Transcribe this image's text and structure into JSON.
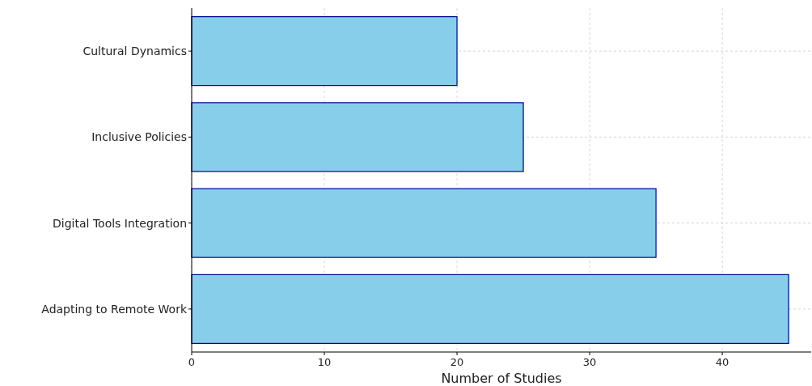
{
  "chart_data": {
    "type": "bar",
    "orientation": "horizontal",
    "xlabel": "Number of Studies",
    "categories": [
      "Cultural Dynamics",
      "Inclusive Policies",
      "Digital Tools Integration",
      "Adapting to Remote Work"
    ],
    "values": [
      20,
      25,
      35,
      45
    ],
    "color": "#87ceeb",
    "xlim": [
      0,
      46.7
    ],
    "xticks": [
      0,
      10,
      20,
      30,
      40
    ],
    "grid": true
  }
}
